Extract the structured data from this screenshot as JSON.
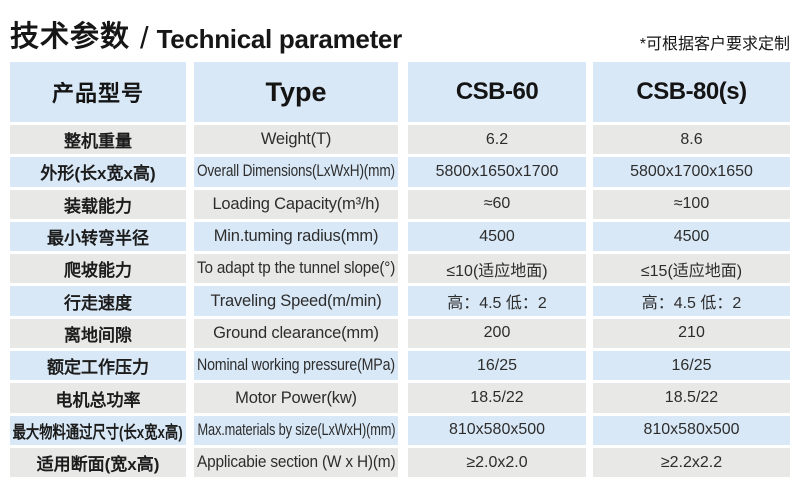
{
  "title": {
    "cn": "技术参数",
    "separator": "/",
    "en": "Technical parameter"
  },
  "note": "*可根据客户要求定制",
  "colors": {
    "row_blue": "#d9e8f6",
    "row_gray": "#e8e8e7",
    "text_dark": "#1c1c1c"
  },
  "table": {
    "header": {
      "product_model_cn": "产品型号",
      "type_label": "Type",
      "model_1": "CSB-60",
      "model_2": "CSB-80(s)"
    },
    "rows": [
      {
        "cn": "整机重量",
        "en": "Weight(T)",
        "csb60": "6.2",
        "csb80": "8.6"
      },
      {
        "cn": "外形(长x宽x高)",
        "en": "Overall Dimensions(LxWxH)(mm)",
        "csb60": "5800x1650x1700",
        "csb80": "5800x1700x1650"
      },
      {
        "cn": "装载能力",
        "en": "Loading Capacity(m³/h)",
        "csb60": "≈60",
        "csb80": "≈100"
      },
      {
        "cn": "最小转弯半径",
        "en": "Min.tuming radius(mm)",
        "csb60": "4500",
        "csb80": "4500"
      },
      {
        "cn": "爬坡能力",
        "en": "To adapt tp the tunnel slope(°)",
        "csb60": "≤10(适应地面)",
        "csb80": "≤15(适应地面)"
      },
      {
        "cn": "行走速度",
        "en": "Traveling Speed(m/min)",
        "csb60": "高：4.5 低：2",
        "csb80": "高：4.5 低：2"
      },
      {
        "cn": "离地间隙",
        "en": "Ground clearance(mm)",
        "csb60": "200",
        "csb80": "210"
      },
      {
        "cn": "额定工作压力",
        "en": "Nominal working pressure(MPa)",
        "csb60": "16/25",
        "csb80": "16/25"
      },
      {
        "cn": "电机总功率",
        "en": "Motor Power(kw)",
        "csb60": "18.5/22",
        "csb80": "18.5/22"
      },
      {
        "cn": "最大物料通过尺寸(长x宽x高)",
        "en": "Max.materials by size(LxWxH)(mm)",
        "csb60": "810x580x500",
        "csb80": "810x580x500"
      },
      {
        "cn": "适用断面(宽x高)",
        "en": "Applicabie section (W x H)(m)",
        "csb60": "≥2.0x2.0",
        "csb80": "≥2.2x2.2"
      }
    ]
  }
}
